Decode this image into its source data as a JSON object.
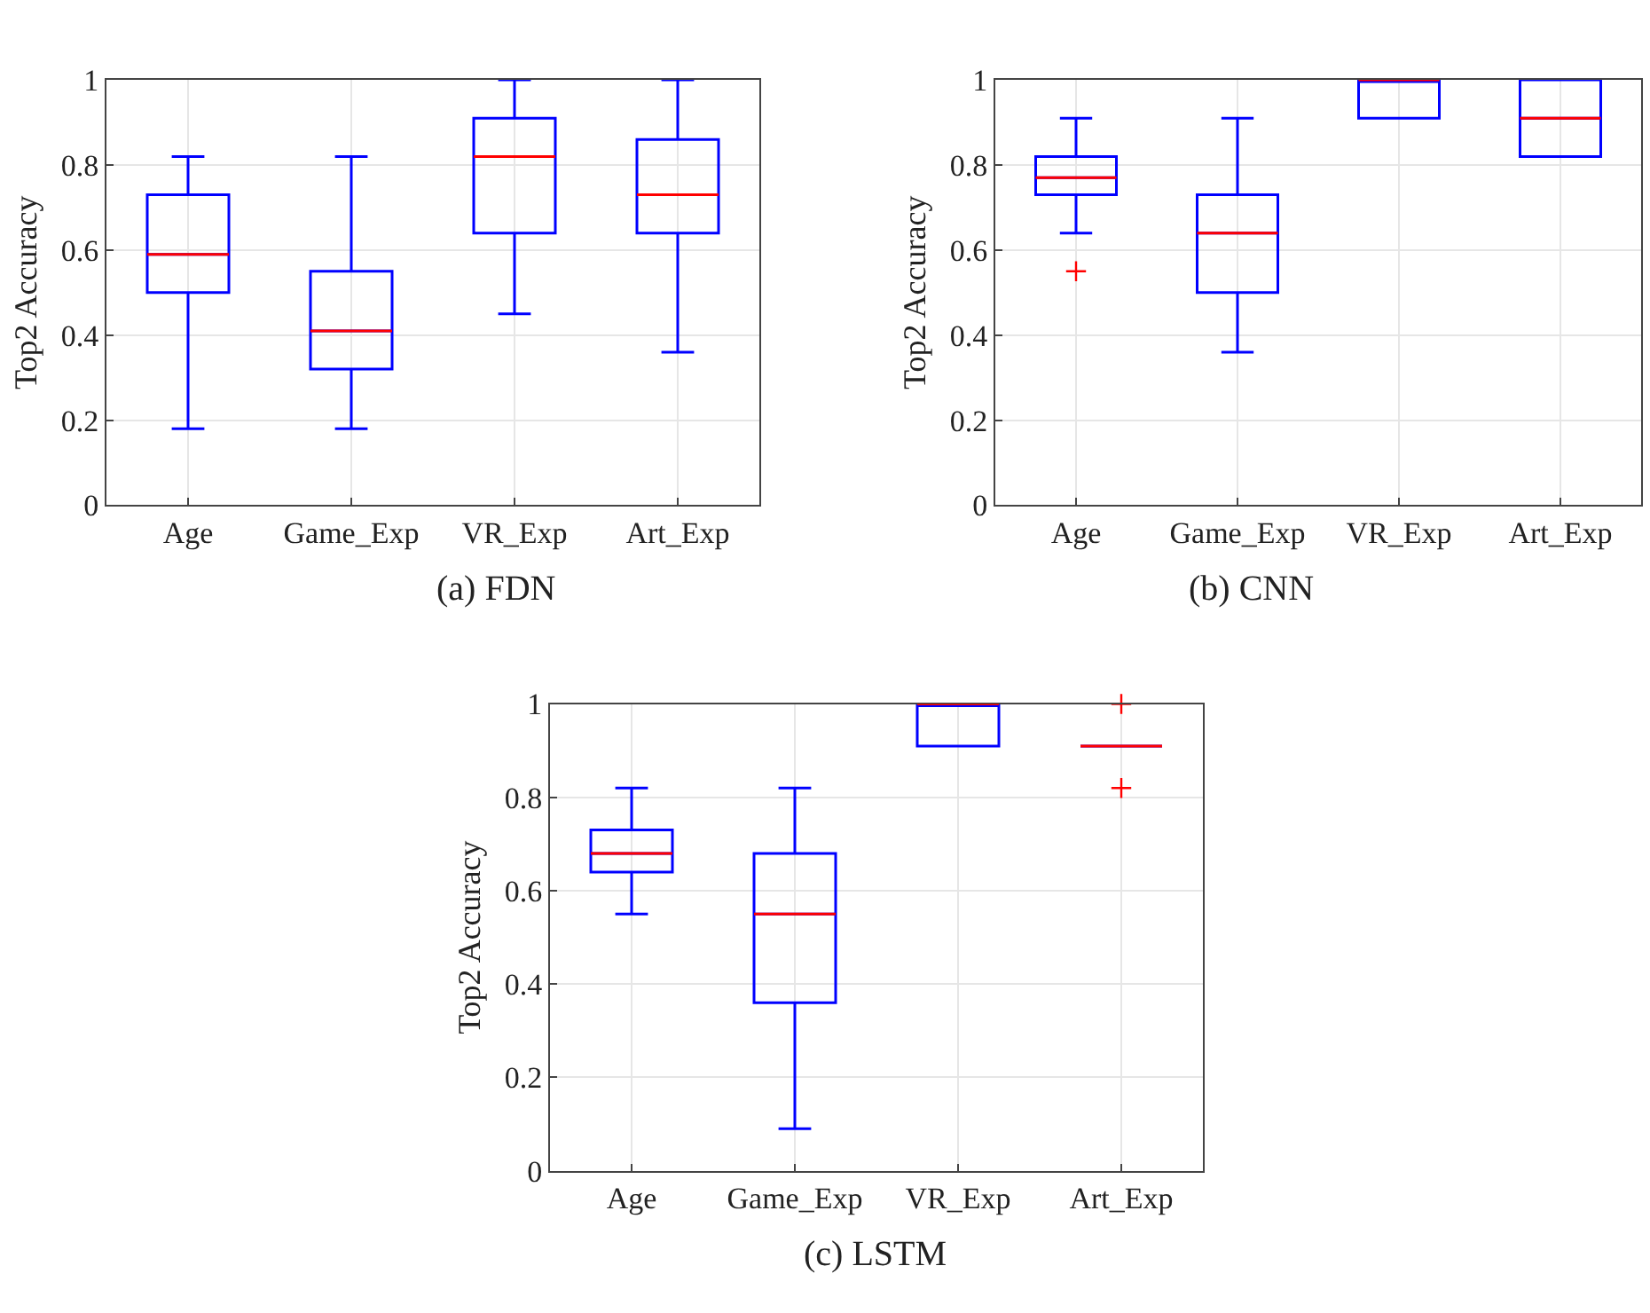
{
  "chart_data": [
    {
      "type": "box",
      "title": "(a) FDN",
      "ylabel": "Top2 Accuracy",
      "categories": [
        "Age",
        "Game_Exp",
        "VR_Exp",
        "Art_Exp"
      ],
      "ylim": [
        0,
        1
      ],
      "yticks": [
        0,
        0.2,
        0.4,
        0.6,
        0.8,
        1
      ],
      "grid": true,
      "marker": "cross",
      "series": [
        {
          "color": "#0000ff",
          "boxes": [
            {
              "low": 0.18,
              "q1": 0.5,
              "median": 0.59,
              "q3": 0.73,
              "high": 0.82
            },
            {
              "low": 0.18,
              "q1": 0.32,
              "median": 0.41,
              "q3": 0.55,
              "high": 0.82
            },
            {
              "low": 0.45,
              "q1": 0.64,
              "median": 0.82,
              "q3": 0.91,
              "high": 1
            },
            {
              "low": 0.36,
              "q1": 0.64,
              "median": 0.73,
              "q3": 0.86,
              "high": 1
            }
          ]
        }
      ]
    },
    {
      "type": "box",
      "title": "(b) CNN",
      "ylabel": "Top2 Accuracy",
      "categories": [
        "Age",
        "Game_Exp",
        "VR_Exp",
        "Art_Exp"
      ],
      "ylim": [
        0,
        1
      ],
      "yticks": [
        0,
        0.2,
        0.4,
        0.6,
        0.8,
        1
      ],
      "grid": true,
      "marker": "cross",
      "series": [
        {
          "color": "#0000ff",
          "boxes": [
            {
              "low": 0.64,
              "q1": 0.73,
              "median": 0.77,
              "q3": 0.82,
              "high": 0.91,
              "outliers": [
                0.55
              ]
            },
            {
              "low": 0.36,
              "q1": 0.5,
              "median": 0.64,
              "q3": 0.73,
              "high": 0.91
            },
            {
              "low": 0.91,
              "q1": 0.91,
              "median": 1,
              "q3": 1,
              "high": 1
            },
            {
              "low": 0.82,
              "q1": 0.82,
              "median": 0.91,
              "q3": 1,
              "high": 1
            }
          ]
        }
      ]
    },
    {
      "type": "box",
      "title": "(c) LSTM",
      "ylabel": "Top2 Accuracy",
      "categories": [
        "Age",
        "Game_Exp",
        "VR_Exp",
        "Art_Exp"
      ],
      "ylim": [
        0,
        1
      ],
      "yticks": [
        0,
        0.2,
        0.4,
        0.6,
        0.8,
        1
      ],
      "grid": true,
      "marker": "cross",
      "series": [
        {
          "color": "#0000ff",
          "boxes": [
            {
              "low": 0.55,
              "q1": 0.64,
              "median": 0.68,
              "q3": 0.73,
              "high": 0.82
            },
            {
              "low": 0.09,
              "q1": 0.36,
              "median": 0.55,
              "q3": 0.68,
              "high": 0.82
            },
            {
              "low": 0.91,
              "q1": 0.91,
              "median": 1,
              "q3": 1,
              "high": 1
            },
            {
              "low": 0.91,
              "q1": 0.91,
              "median": 0.91,
              "q3": 0.91,
              "high": 0.91,
              "outliers": [
                1,
                0.82
              ]
            }
          ]
        }
      ]
    }
  ]
}
